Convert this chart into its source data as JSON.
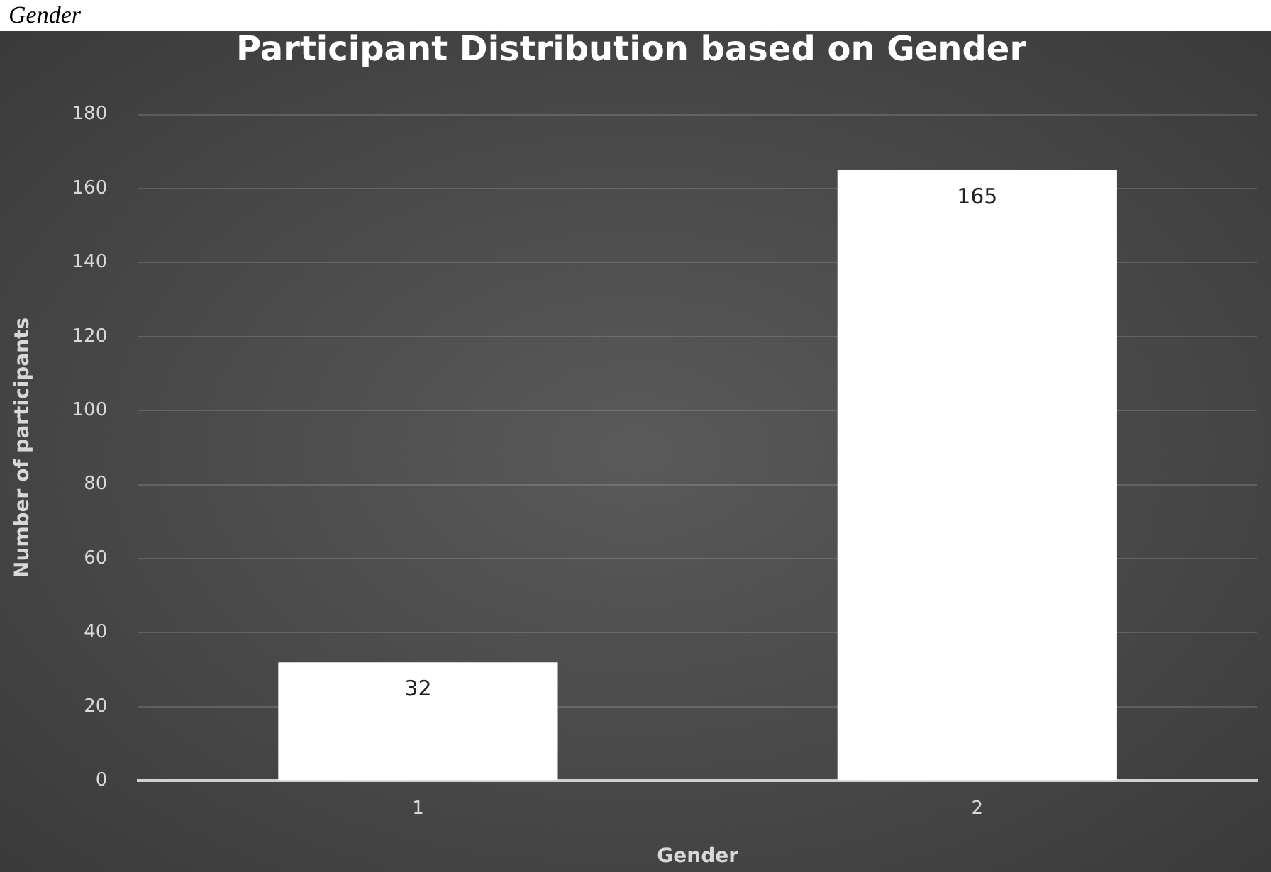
{
  "chart_data": {
    "type": "bar",
    "title": "Participant Distribution based on Gender",
    "xlabel": "Gender",
    "ylabel": "Number of participants",
    "categories": [
      "1",
      "2"
    ],
    "values": [
      32,
      165
    ],
    "color": "#ffffff",
    "ylim": [
      0,
      180
    ],
    "yticks": [
      0,
      20,
      40,
      60,
      80,
      100,
      120,
      140,
      160,
      180
    ],
    "grid": "y",
    "data_labels": true,
    "annotations": [
      "Gender"
    ]
  }
}
